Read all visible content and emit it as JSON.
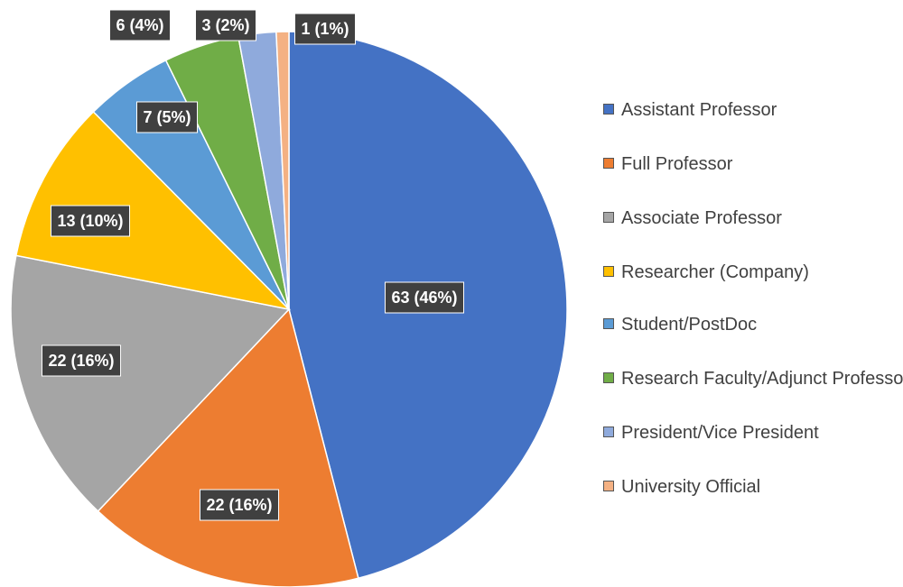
{
  "chart_data": {
    "type": "pie",
    "categories": [
      "Assistant Professor",
      "Full Professor",
      "Associate Professor",
      "Researcher (Company)",
      "Student/PostDoc",
      "Research Faculty/Adjunct Professor",
      "President/Vice President",
      "University Official"
    ],
    "values": [
      63,
      22,
      22,
      13,
      7,
      6,
      3,
      1
    ],
    "value_labels": [
      "63 (46%)",
      "22 (16%)",
      "22 (16%)",
      "13 (10%)",
      "7 (5%)",
      "6 (4%)",
      "3 (2%)",
      "1 (1%)"
    ],
    "colors": [
      "#4472c4",
      "#ed7d31",
      "#a5a5a5",
      "#ffc000",
      "#5b9bd5",
      "#70ad47",
      "#8faadc",
      "#f4b183"
    ],
    "legend": "right"
  }
}
